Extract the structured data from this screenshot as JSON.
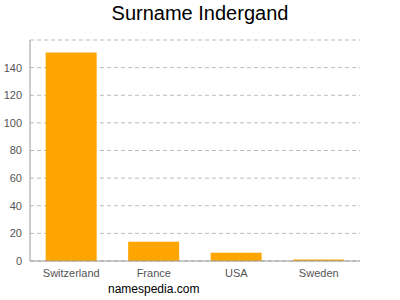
{
  "chart_data": {
    "type": "bar",
    "title": "Surname Indergand",
    "categories": [
      "Switzerland",
      "France",
      "USA",
      "Sweden"
    ],
    "values": [
      151,
      14,
      6,
      1
    ],
    "color": "#ffa500",
    "ylim": [
      0,
      160
    ],
    "yticks": [
      0,
      20,
      40,
      60,
      80,
      100,
      120,
      140
    ],
    "grid": true,
    "annotations": [
      "namespedia.com"
    ]
  }
}
